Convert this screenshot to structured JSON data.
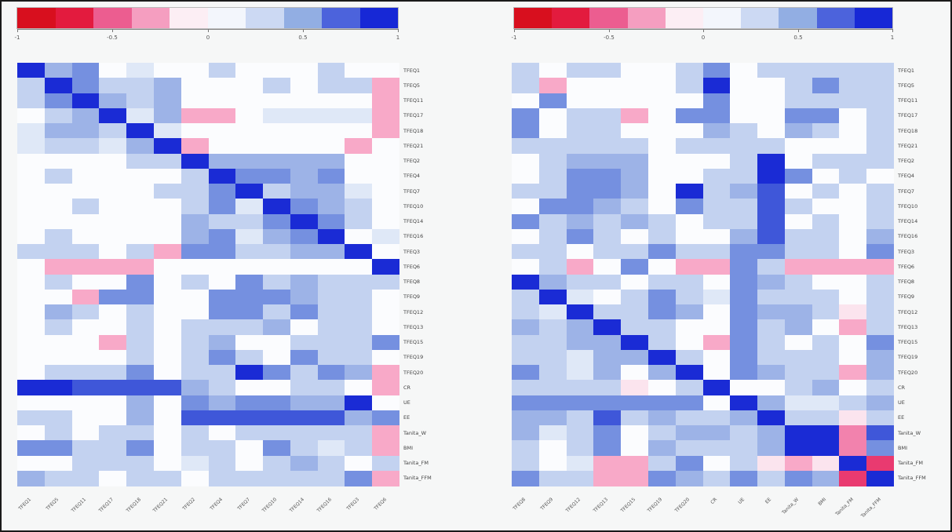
{
  "figure": {
    "background": "#f6f7f7",
    "border_color": "#1a1a1a"
  },
  "colorbar": {
    "segments": [
      "#d80f1e",
      "#e31b3e",
      "#ec5d90",
      "#f59ec0",
      "#fceef4",
      "#f3f6fc",
      "#ccd9f3",
      "#92aee3",
      "#4c63dc",
      "#1728d6"
    ],
    "ticks": [
      {
        "label": "-1",
        "pos": 0
      },
      {
        "label": "-0.5",
        "pos": 0.25
      },
      {
        "label": "0",
        "pos": 0.5
      },
      {
        "label": "0.5",
        "pos": 0.75
      },
      {
        "label": "1",
        "pos": 1
      }
    ]
  },
  "level_colors": {
    "6": "#1a2bd5",
    "5": "#3f57d9",
    "4": "#7590e0",
    "3": "#9db3e7",
    "2": "#c3d2f0",
    "1": "#dfe8f7",
    "0": "#fbfcfe",
    "-1": "#fbe4ee",
    "-2": "#f8a9c8",
    "-3": "#f282ad",
    "-4": "#ee5e92",
    "-5": "#e93a70",
    "-6": "#de0c1e"
  },
  "level_value_hint": {
    "6": 1.0,
    "5": 0.8,
    "4": 0.6,
    "3": 0.45,
    "2": 0.3,
    "1": 0.15,
    "0": 0.0,
    "-1": -0.15,
    "-2": -0.3,
    "-3": -0.45,
    "-4": -0.6,
    "-5": -0.7,
    "-6": -1.0
  },
  "chart_data": [
    {
      "type": "heatmap",
      "title": "",
      "legend_position": "top",
      "colorbar_range": [
        -1,
        1
      ],
      "rows": [
        "TFEQ1",
        "TFEQ5",
        "TFEQ11",
        "TFEQ17",
        "TFEQ18",
        "TFEQ21",
        "TFEQ2",
        "TFEQ4",
        "TFEQ7",
        "TFEQ10",
        "TFEQ14",
        "TFEQ16",
        "TFEQ3",
        "TFEQ6",
        "TFEQ8",
        "TFEQ9",
        "TFEQ12",
        "TFEQ13",
        "TFEQ15",
        "TFEQ19",
        "TFEQ20",
        "CR",
        "UE",
        "EE",
        "Tanita_W",
        "BMI",
        "Tanita_FM",
        "Tanita_FFM"
      ],
      "cols": [
        "TFEQ1",
        "TFEQ5",
        "TFEQ11",
        "TFEQ17",
        "TFEQ18",
        "TFEQ21",
        "TFEQ2",
        "TFEQ4",
        "TFEQ7",
        "TFEQ10",
        "TFEQ14",
        "TFEQ16",
        "TFEQ3",
        "TFEQ6"
      ],
      "levels": [
        [
          6,
          3,
          4,
          0,
          1,
          0,
          0,
          2,
          0,
          0,
          0,
          2,
          0,
          0
        ],
        [
          2,
          6,
          4,
          2,
          2,
          3,
          0,
          0,
          0,
          2,
          0,
          2,
          2,
          -2
        ],
        [
          2,
          4,
          6,
          3,
          2,
          3,
          0,
          0,
          0,
          0,
          0,
          0,
          0,
          -2
        ],
        [
          0,
          2,
          3,
          6,
          1,
          3,
          -2,
          -2,
          0,
          1,
          1,
          1,
          1,
          -2
        ],
        [
          1,
          3,
          3,
          2,
          6,
          1,
          0,
          0,
          0,
          0,
          0,
          0,
          0,
          -2
        ],
        [
          1,
          2,
          2,
          1,
          3,
          6,
          -2,
          0,
          0,
          0,
          0,
          0,
          -2,
          0
        ],
        [
          0,
          0,
          0,
          0,
          2,
          2,
          6,
          3,
          3,
          3,
          3,
          3,
          0,
          0
        ],
        [
          0,
          2,
          0,
          0,
          0,
          0,
          2,
          6,
          4,
          4,
          3,
          4,
          0,
          0
        ],
        [
          0,
          0,
          0,
          0,
          0,
          2,
          2,
          4,
          6,
          2,
          3,
          3,
          1,
          0
        ],
        [
          0,
          0,
          2,
          0,
          0,
          0,
          2,
          4,
          1,
          6,
          4,
          3,
          2,
          0
        ],
        [
          0,
          0,
          0,
          0,
          0,
          0,
          3,
          2,
          2,
          4,
          6,
          4,
          2,
          0
        ],
        [
          0,
          2,
          0,
          0,
          0,
          0,
          3,
          4,
          1,
          3,
          4,
          6,
          0,
          1
        ],
        [
          2,
          2,
          2,
          0,
          2,
          -2,
          4,
          4,
          2,
          2,
          3,
          3,
          6,
          0
        ],
        [
          0,
          -2,
          -2,
          -2,
          -2,
          0,
          0,
          0,
          0,
          0,
          0,
          0,
          0,
          6
        ],
        [
          0,
          2,
          0,
          0,
          4,
          0,
          2,
          0,
          4,
          2,
          3,
          2,
          2,
          2
        ],
        [
          0,
          0,
          -2,
          4,
          4,
          0,
          0,
          4,
          4,
          4,
          3,
          2,
          2,
          0
        ],
        [
          0,
          3,
          2,
          0,
          2,
          0,
          0,
          4,
          4,
          2,
          4,
          2,
          2,
          0
        ],
        [
          0,
          2,
          0,
          0,
          2,
          0,
          2,
          2,
          2,
          3,
          0,
          2,
          2,
          0
        ],
        [
          0,
          0,
          0,
          -2,
          2,
          0,
          2,
          3,
          0,
          0,
          2,
          2,
          2,
          4
        ],
        [
          0,
          0,
          0,
          0,
          2,
          0,
          2,
          4,
          2,
          0,
          4,
          2,
          2,
          0
        ],
        [
          0,
          2,
          2,
          2,
          4,
          0,
          2,
          2,
          6,
          4,
          2,
          4,
          3,
          -2
        ],
        [
          6,
          6,
          5,
          5,
          5,
          5,
          3,
          2,
          0,
          0,
          2,
          2,
          0,
          -2
        ],
        [
          0,
          0,
          0,
          0,
          3,
          0,
          4,
          3,
          4,
          4,
          3,
          3,
          6,
          0
        ],
        [
          2,
          2,
          0,
          0,
          3,
          0,
          5,
          5,
          5,
          5,
          5,
          5,
          3,
          4
        ],
        [
          0,
          2,
          0,
          2,
          2,
          0,
          2,
          0,
          2,
          2,
          2,
          2,
          2,
          -2
        ],
        [
          4,
          4,
          2,
          2,
          4,
          0,
          2,
          2,
          0,
          4,
          2,
          1,
          2,
          -2
        ],
        [
          0,
          0,
          2,
          2,
          2,
          0,
          1,
          2,
          0,
          2,
          3,
          2,
          0,
          2
        ],
        [
          3,
          2,
          2,
          0,
          2,
          2,
          0,
          2,
          2,
          2,
          2,
          2,
          4,
          -2
        ]
      ]
    },
    {
      "type": "heatmap",
      "title": "",
      "legend_position": "top",
      "colorbar_range": [
        -1,
        1
      ],
      "rows": [
        "TFEQ1",
        "TFEQ5",
        "TFEQ11",
        "TFEQ17",
        "TFEQ18",
        "TFEQ21",
        "TFEQ2",
        "TFEQ4",
        "TFEQ7",
        "TFEQ10",
        "TFEQ14",
        "TFEQ16",
        "TFEQ3",
        "TFEQ6",
        "TFEQ8",
        "TFEQ9",
        "TFEQ12",
        "TFEQ13",
        "TFEQ15",
        "TFEQ19",
        "TFEQ20",
        "CR",
        "UE",
        "EE",
        "Tanita_W",
        "BMI",
        "Tanita_FM",
        "Tanita_FFM"
      ],
      "cols": [
        "TFEQ8",
        "TFEQ9",
        "TFEQ12",
        "TFEQ13",
        "TFEQ15",
        "TFEQ19",
        "TFEQ20",
        "CR",
        "UE",
        "EE",
        "Tanita_W",
        "BMI",
        "Tanita_FM",
        "Tanita_FFM"
      ],
      "levels": [
        [
          2,
          0,
          2,
          2,
          0,
          0,
          2,
          4,
          0,
          2,
          2,
          2,
          2,
          2
        ],
        [
          2,
          -2,
          0,
          0,
          0,
          0,
          2,
          6,
          0,
          0,
          2,
          4,
          2,
          2
        ],
        [
          0,
          4,
          0,
          0,
          0,
          0,
          0,
          4,
          0,
          0,
          2,
          2,
          2,
          2
        ],
        [
          4,
          0,
          2,
          2,
          -2,
          0,
          4,
          4,
          0,
          0,
          4,
          4,
          0,
          2
        ],
        [
          4,
          0,
          2,
          2,
          0,
          0,
          0,
          3,
          2,
          0,
          3,
          2,
          0,
          2
        ],
        [
          2,
          2,
          2,
          2,
          2,
          0,
          2,
          2,
          2,
          2,
          0,
          0,
          0,
          2
        ],
        [
          0,
          2,
          3,
          3,
          3,
          0,
          0,
          0,
          2,
          6,
          0,
          2,
          2,
          2
        ],
        [
          0,
          2,
          4,
          4,
          3,
          0,
          0,
          2,
          2,
          6,
          4,
          0,
          2,
          0
        ],
        [
          2,
          2,
          4,
          4,
          3,
          0,
          6,
          2,
          3,
          5,
          0,
          2,
          0,
          2
        ],
        [
          0,
          4,
          4,
          3,
          2,
          0,
          4,
          2,
          2,
          5,
          2,
          0,
          0,
          2
        ],
        [
          4,
          2,
          3,
          2,
          3,
          2,
          0,
          2,
          2,
          5,
          0,
          2,
          0,
          2
        ],
        [
          0,
          2,
          4,
          2,
          0,
          2,
          0,
          0,
          3,
          5,
          2,
          2,
          0,
          3
        ],
        [
          2,
          2,
          0,
          2,
          2,
          4,
          2,
          2,
          4,
          4,
          2,
          2,
          0,
          4
        ],
        [
          0,
          2,
          -2,
          0,
          4,
          0,
          -2,
          -2,
          4,
          2,
          -2,
          -2,
          -2,
          -2
        ],
        [
          6,
          3,
          2,
          2,
          0,
          2,
          2,
          0,
          4,
          3,
          2,
          0,
          0,
          2
        ],
        [
          2,
          6,
          1,
          0,
          2,
          4,
          2,
          1,
          4,
          2,
          2,
          2,
          0,
          2
        ],
        [
          2,
          1,
          6,
          2,
          2,
          4,
          3,
          0,
          4,
          3,
          3,
          2,
          -1,
          2
        ],
        [
          3,
          2,
          3,
          6,
          2,
          2,
          0,
          0,
          4,
          2,
          3,
          0,
          -2,
          2
        ],
        [
          2,
          2,
          3,
          3,
          6,
          2,
          0,
          -2,
          4,
          2,
          0,
          2,
          0,
          4
        ],
        [
          2,
          2,
          1,
          3,
          3,
          6,
          2,
          0,
          4,
          2,
          2,
          2,
          0,
          3
        ],
        [
          4,
          2,
          1,
          3,
          0,
          3,
          6,
          0,
          4,
          3,
          2,
          2,
          -2,
          3
        ],
        [
          2,
          2,
          2,
          2,
          -1,
          0,
          2,
          6,
          0,
          0,
          2,
          3,
          0,
          2
        ],
        [
          4,
          4,
          4,
          4,
          4,
          4,
          4,
          0,
          6,
          3,
          1,
          1,
          2,
          3
        ],
        [
          3,
          3,
          2,
          5,
          2,
          3,
          2,
          2,
          3,
          6,
          2,
          2,
          -1,
          2
        ],
        [
          3,
          1,
          2,
          4,
          0,
          2,
          3,
          3,
          2,
          3,
          6,
          6,
          -3,
          5
        ],
        [
          2,
          0,
          2,
          4,
          0,
          3,
          2,
          2,
          2,
          3,
          6,
          6,
          -3,
          4
        ],
        [
          2,
          0,
          1,
          -2,
          -2,
          2,
          4,
          0,
          2,
          -1,
          -2,
          -1,
          6,
          -5
        ],
        [
          4,
          2,
          2,
          -2,
          -2,
          4,
          3,
          2,
          4,
          2,
          4,
          3,
          -5,
          6
        ]
      ]
    }
  ]
}
